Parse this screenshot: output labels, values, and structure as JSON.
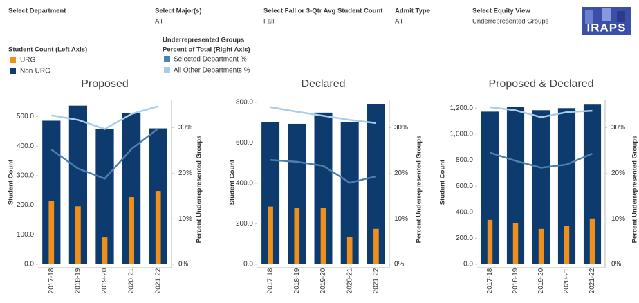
{
  "filters": [
    {
      "label": "Select Department"
    },
    {
      "label": "Select Major(s)",
      "value": "All"
    },
    {
      "label": "Select Fall or 3-Qtr Avg Student Count",
      "value": "Fall"
    },
    {
      "label": "Admit Type",
      "value": "All"
    },
    {
      "label": "Select Equity View",
      "value": "Underrepresented Groups"
    }
  ],
  "logo": "IRAPS",
  "legend": {
    "left_title": "Student Count (Left Axis)",
    "right_title": [
      "Underrepresented Groups",
      "Percent of Total (Right Axis)"
    ]
  },
  "chart_data": [
    {
      "type": "combo",
      "title": "Proposed",
      "y_label": "Student Count",
      "y2_label": "Percent Underrepresented Groups",
      "categories": [
        "2017-18",
        "2018-19",
        "2019-20",
        "2020-21",
        "2021-22"
      ],
      "ylim": [
        0,
        555
      ],
      "yticks": [
        {
          "value": 0,
          "label": "0.0"
        },
        {
          "value": 100,
          "label": "100.0"
        },
        {
          "value": 200,
          "label": "200.0"
        },
        {
          "value": 300,
          "label": "300.0"
        },
        {
          "value": 400,
          "label": "400.0"
        },
        {
          "value": 500,
          "label": "500.0"
        }
      ],
      "y2lim": [
        0,
        36
      ],
      "y2ticks": [
        {
          "value": 0,
          "label": "0%"
        },
        {
          "value": 10,
          "label": "10%"
        },
        {
          "value": 20,
          "label": "20%"
        },
        {
          "value": 30,
          "label": "30%"
        }
      ],
      "series": [
        {
          "name": "Non-URG",
          "color": "#0d3b6e",
          "values": [
            486,
            537,
            458,
            512,
            460
          ]
        },
        {
          "name": "URG",
          "color": "#f0901c",
          "values": [
            214,
            196,
            91,
            227,
            248
          ]
        },
        {
          "name": "Selected Department %",
          "color": "#4f7fac",
          "axis": "y2",
          "values": [
            25.2,
            21,
            18.8,
            25.3,
            29.8
          ]
        },
        {
          "name": "All Other Departments %",
          "color": "#a8cde9",
          "axis": "y2",
          "values": [
            32.7,
            31.7,
            29.7,
            33,
            34.7
          ]
        }
      ]
    },
    {
      "type": "combo",
      "title": "Declared",
      "y_label": "Student Count",
      "y2_label": "Percent Underrepresented Groups",
      "categories": [
        "2017-18",
        "2018-19",
        "2019-20",
        "2020-21",
        "2021-22"
      ],
      "ylim": [
        0,
        810
      ],
      "yticks": [
        {
          "value": 0,
          "label": "0.0"
        },
        {
          "value": 200,
          "label": "200.0"
        },
        {
          "value": 400,
          "label": "400.0"
        },
        {
          "value": 600,
          "label": "600.0"
        },
        {
          "value": 800,
          "label": "800.0"
        }
      ],
      "y2lim": [
        0,
        36
      ],
      "y2ticks": [
        {
          "value": 0,
          "label": "0%"
        },
        {
          "value": 10,
          "label": "10%"
        },
        {
          "value": 20,
          "label": "20%"
        },
        {
          "value": 30,
          "label": "30%"
        }
      ],
      "series": [
        {
          "name": "Non-URG",
          "color": "#0d3b6e",
          "values": [
            704,
            694,
            749,
            701,
            790
          ]
        },
        {
          "name": "URG",
          "color": "#f0901c",
          "values": [
            285,
            280,
            280,
            135,
            175
          ]
        },
        {
          "name": "Selected Department %",
          "color": "#4f7fac",
          "axis": "y2",
          "values": [
            22.9,
            22.5,
            21.6,
            17.9,
            19.3
          ]
        },
        {
          "name": "All Other Departments %",
          "color": "#a8cde9",
          "axis": "y2",
          "values": [
            34.5,
            33.5,
            32.6,
            31.7,
            31
          ]
        }
      ]
    },
    {
      "type": "combo",
      "title": "Proposed & Declared",
      "y_label": "Student Count",
      "y2_label": "Percent Underrepresented Groups",
      "categories": [
        "2017-18",
        "2018-19",
        "2019-20",
        "2020-21",
        "2021-22"
      ],
      "ylim": [
        0,
        1260
      ],
      "yticks": [
        {
          "value": 0,
          "label": "0.0"
        },
        {
          "value": 200,
          "label": "200.0"
        },
        {
          "value": 400,
          "label": "400.0"
        },
        {
          "value": 600,
          "label": "600.0"
        },
        {
          "value": 800,
          "label": "800.0"
        },
        {
          "value": 1000,
          "label": "1,000.0"
        },
        {
          "value": 1200,
          "label": "1,200.0"
        }
      ],
      "y2lim": [
        0,
        36
      ],
      "y2ticks": [
        {
          "value": 0,
          "label": "0%"
        },
        {
          "value": 10,
          "label": "10%"
        },
        {
          "value": 20,
          "label": "20%"
        },
        {
          "value": 30,
          "label": "30%"
        }
      ],
      "series": [
        {
          "name": "Non-URG",
          "color": "#0d3b6e",
          "values": [
            1173,
            1211,
            1184,
            1200,
            1227
          ]
        },
        {
          "name": "URG",
          "color": "#f0901c",
          "values": [
            341,
            315,
            272,
            293,
            352
          ]
        },
        {
          "name": "Selected Department %",
          "color": "#4f7fac",
          "axis": "y2",
          "values": [
            24.5,
            22.7,
            21.2,
            21.9,
            24.3
          ]
        },
        {
          "name": "All Other Departments %",
          "color": "#a8cde9",
          "axis": "y2",
          "values": [
            34.5,
            33.8,
            32.3,
            33.4,
            33.7
          ]
        }
      ]
    }
  ]
}
